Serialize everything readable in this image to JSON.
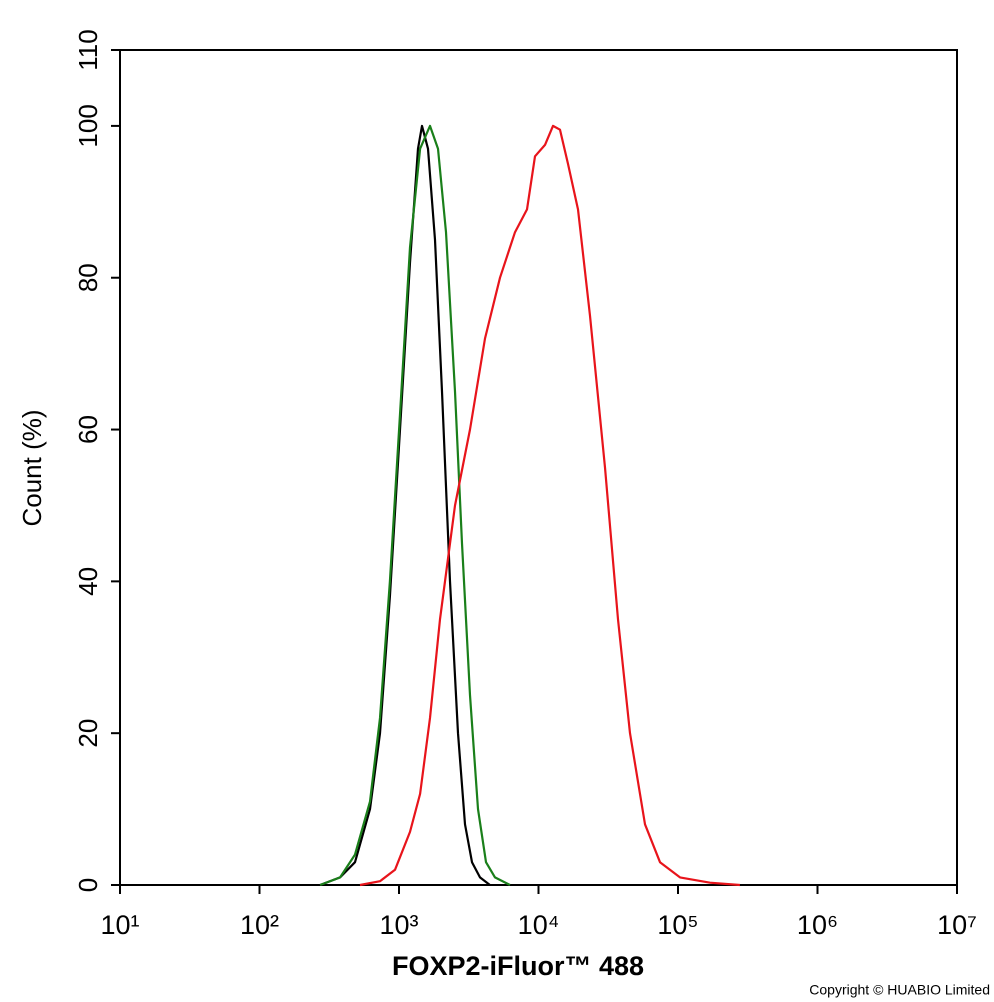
{
  "chart_data": {
    "type": "line",
    "x_label": "FOXP2-iFluor™ 488",
    "y_label": "Count  (%)",
    "credit": "Copyright © HUABIO Limited",
    "xlog": true,
    "xlim": [
      10,
      10000000
    ],
    "xticks": [
      {
        "value": 10,
        "label": "10¹"
      },
      {
        "value": 100,
        "label": "10²"
      },
      {
        "value": 1000,
        "label": "10³"
      },
      {
        "value": 10000,
        "label": "10⁴"
      },
      {
        "value": 100000,
        "label": "10⁵"
      },
      {
        "value": 1000000,
        "label": "10⁶"
      },
      {
        "value": 10000000,
        "label": "10⁷"
      }
    ],
    "ylim": [
      0,
      110
    ],
    "yticks": [
      0,
      20,
      40,
      60,
      80,
      100,
      110
    ],
    "series": [
      {
        "color": "#000000",
        "x": [
          272,
          378,
          484,
          620,
          731,
          861,
          1016,
          1199,
          1368,
          1462,
          1614,
          1811,
          2032,
          2322,
          2648,
          2972,
          3334,
          3810,
          4487
        ],
        "values": [
          0,
          1,
          3,
          10,
          20,
          38,
          60,
          82,
          97,
          100,
          97,
          85,
          65,
          40,
          20,
          8,
          3,
          1,
          0
        ]
      },
      {
        "color": "#1a7f1a",
        "x": [
          272,
          378,
          484,
          620,
          731,
          861,
          1016,
          1199,
          1416,
          1668,
          1905,
          2173,
          2519,
          2829,
          3227,
          3681,
          4204,
          4875,
          6252
        ],
        "values": [
          0,
          1,
          4,
          11,
          22,
          40,
          62,
          84,
          97,
          100,
          97,
          86,
          65,
          45,
          25,
          10,
          3,
          1,
          0
        ]
      },
      {
        "color": "#e8141b",
        "x": [
          525,
          731,
          936,
          1199,
          1416,
          1668,
          1968,
          2519,
          3227,
          4134,
          5297,
          6788,
          8275,
          9441,
          11141,
          12700,
          14260,
          16260,
          19190,
          23390,
          29970,
          37150,
          45280,
          57980,
          74330,
          103300,
          169500,
          278000
        ],
        "values": [
          0,
          0.5,
          2,
          7,
          12,
          22,
          35,
          50,
          60,
          72,
          80,
          86,
          89,
          96,
          97.5,
          100,
          99.5,
          95,
          89,
          75,
          55,
          35,
          20,
          8,
          3,
          1,
          0.3,
          0
        ]
      }
    ]
  }
}
